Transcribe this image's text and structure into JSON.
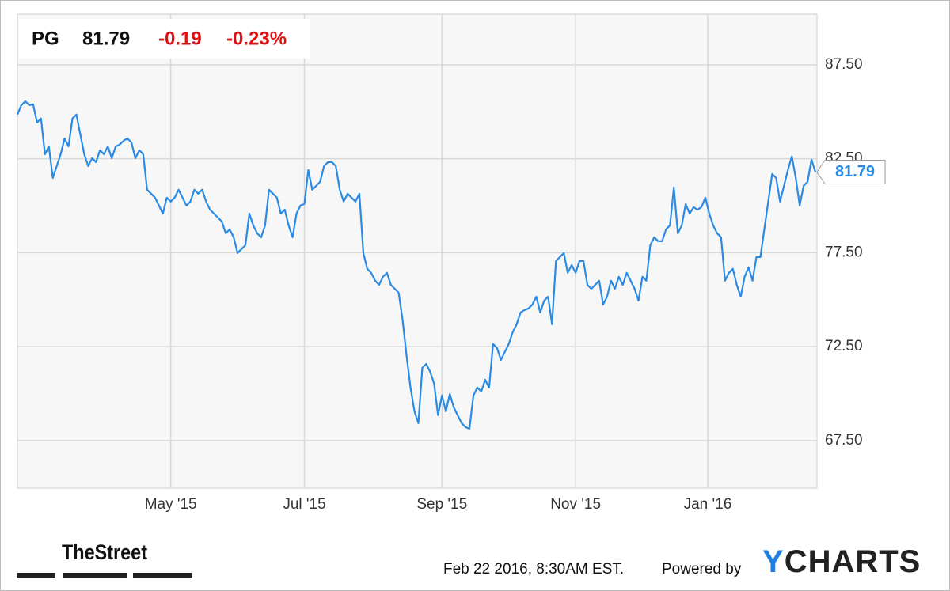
{
  "chart_data": {
    "type": "line",
    "header": {
      "symbol": "PG",
      "price": 81.79,
      "change": -0.19,
      "change_pct": "-0.23%"
    },
    "series": [
      {
        "name": "PG",
        "color": "#2b8ae2",
        "values": [
          84.85,
          85.35,
          85.56,
          85.35,
          85.39,
          84.43,
          84.64,
          82.74,
          83.16,
          81.48,
          82.11,
          82.74,
          83.58,
          83.16,
          84.64,
          84.85,
          83.79,
          82.74,
          82.11,
          82.53,
          82.32,
          82.95,
          82.74,
          83.16,
          82.53,
          83.16,
          83.25,
          83.46,
          83.58,
          83.37,
          82.53,
          82.95,
          82.74,
          80.85,
          80.64,
          80.43,
          80.01,
          79.58,
          80.43,
          80.22,
          80.43,
          80.85,
          80.43,
          80.01,
          80.22,
          80.85,
          80.64,
          80.85,
          80.22,
          79.79,
          79.58,
          79.37,
          79.16,
          78.53,
          78.74,
          78.32,
          77.48,
          77.69,
          77.9,
          79.58,
          78.95,
          78.53,
          78.32,
          78.95,
          80.85,
          80.64,
          80.43,
          79.58,
          79.79,
          78.95,
          78.32,
          79.58,
          80.01,
          80.09,
          81.9,
          80.85,
          81.06,
          81.27,
          82.11,
          82.32,
          82.32,
          82.11,
          80.85,
          80.22,
          80.64,
          80.43,
          80.22,
          80.64,
          77.48,
          76.64,
          76.43,
          76.01,
          75.79,
          76.22,
          76.43,
          75.79,
          75.58,
          75.37,
          73.9,
          72.01,
          70.32,
          69.06,
          68.43,
          71.37,
          71.58,
          71.16,
          70.53,
          68.85,
          69.9,
          69.06,
          69.98,
          69.27,
          68.85,
          68.43,
          68.22,
          68.13,
          69.9,
          70.32,
          70.11,
          70.74,
          70.32,
          72.64,
          72.43,
          71.79,
          72.22,
          72.64,
          73.27,
          73.69,
          74.32,
          74.45,
          74.53,
          74.74,
          75.16,
          74.32,
          74.95,
          75.16,
          73.69,
          77.06,
          77.27,
          77.48,
          76.43,
          76.85,
          76.43,
          77.06,
          77.06,
          75.79,
          75.58,
          75.79,
          76.01,
          74.74,
          75.16,
          76.01,
          75.58,
          76.22,
          75.79,
          76.43,
          76.01,
          75.58,
          74.95,
          76.22,
          76.01,
          77.9,
          78.32,
          78.11,
          78.11,
          78.74,
          78.95,
          80.97,
          78.53,
          78.95,
          80.09,
          79.58,
          79.92,
          79.79,
          79.92,
          80.43,
          79.58,
          78.95,
          78.53,
          78.32,
          76.01,
          76.43,
          76.64,
          75.79,
          75.16,
          76.22,
          76.72,
          76.01,
          77.27,
          77.27,
          78.74,
          80.22,
          81.69,
          81.48,
          80.22,
          81.06,
          81.9,
          82.62,
          81.48,
          80.01,
          81.06,
          81.27,
          82.45,
          81.79
        ]
      }
    ],
    "xlim": [
      0,
      203.4
    ],
    "xticks": [
      {
        "value": 39,
        "label": "May '15"
      },
      {
        "value": 73,
        "label": "Jul '15"
      },
      {
        "value": 108,
        "label": "Sep '15"
      },
      {
        "value": 142,
        "label": "Nov '15"
      },
      {
        "value": 175.6,
        "label": "Jan '16"
      }
    ],
    "ylim": [
      64.97,
      90.19
    ],
    "yticks": [
      {
        "value": 67.5,
        "label": "67.50"
      },
      {
        "value": 72.5,
        "label": "72.50"
      },
      {
        "value": 77.5,
        "label": "77.50"
      },
      {
        "value": 82.5,
        "label": "82.50"
      },
      {
        "value": 87.5,
        "label": "87.50"
      }
    ],
    "grid": true,
    "source": "TheStreet",
    "timestamp": "Feb 22 2016, 8:30AM EST.",
    "powered_by": "Powered by",
    "logo": "YCHARTS"
  }
}
